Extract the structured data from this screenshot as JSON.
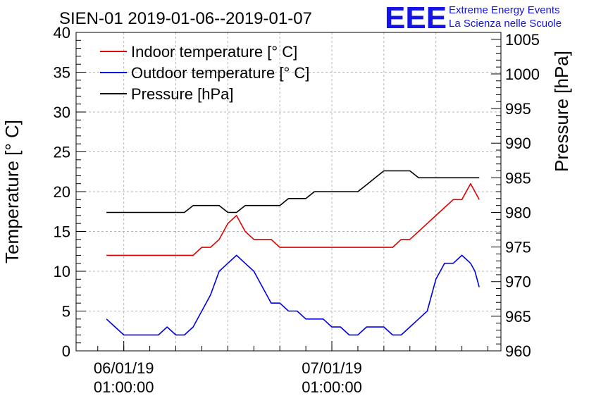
{
  "chart_data": {
    "type": "line",
    "title": "SIEN-01 2019-01-06--2019-01-07",
    "logo": {
      "text": "EEE",
      "line1": "Extreme Energy Events",
      "line2": "La Scienza nelle Scuole",
      "color": "#1414e6"
    },
    "ylabel_left": "Temperature [° C]",
    "ylabel_right": "Pressure [hPa]",
    "ylim_left": [
      0,
      40
    ],
    "ylim_right": [
      960,
      1006
    ],
    "left_ticks": [
      "0",
      "5",
      "10",
      "15",
      "20",
      "25",
      "30",
      "35",
      "40"
    ],
    "right_ticks": [
      "960",
      "965",
      "970",
      "975",
      "980",
      "985",
      "990",
      "995",
      "1000",
      "1005"
    ],
    "x_hours_range": [
      -5.5,
      43.5
    ],
    "x_ticks": [
      {
        "hour": 0,
        "date": "06/01/19",
        "time": "01:00:00"
      },
      {
        "hour": 24,
        "date": "07/01/19",
        "time": "01:00:00"
      }
    ],
    "legend": [
      "Indoor temperature [° C]",
      "Outdoor temperature [° C]",
      "Pressure [hPa]"
    ],
    "x": [
      -2,
      -1,
      0,
      1,
      2,
      3,
      4,
      5,
      6,
      7,
      8,
      9,
      10,
      11,
      12,
      13,
      14,
      15,
      16,
      17,
      18,
      19,
      20,
      21,
      22,
      23,
      24,
      25,
      26,
      27,
      28,
      29,
      30,
      31,
      32,
      33,
      34,
      35,
      36,
      37,
      38,
      39,
      40,
      40.5,
      41
    ],
    "series": [
      {
        "name": "Indoor temperature [° C]",
        "axis": "left",
        "color": "#e00000",
        "values": [
          12,
          12,
          12,
          12,
          12,
          12,
          12,
          12,
          12,
          12,
          12,
          13,
          13,
          14,
          16,
          17,
          15,
          14,
          14,
          14,
          13,
          13,
          13,
          13,
          13,
          13,
          13,
          13,
          13,
          13,
          13,
          13,
          13,
          13,
          14,
          14,
          15,
          16,
          17,
          18,
          19,
          19,
          21,
          20,
          19
        ]
      },
      {
        "name": "Outdoor temperature [° C]",
        "axis": "left",
        "color": "#0000e0",
        "values": [
          4,
          3,
          2,
          2,
          2,
          2,
          2,
          3,
          2,
          2,
          3,
          5,
          7,
          10,
          11,
          12,
          11,
          10,
          8,
          6,
          6,
          5,
          5,
          4,
          4,
          4,
          3,
          3,
          2,
          2,
          3,
          3,
          3,
          2,
          2,
          3,
          4,
          5,
          9,
          11,
          11,
          12,
          11,
          10,
          8
        ]
      },
      {
        "name": "Pressure [hPa]",
        "axis": "right",
        "color": "#000000",
        "values": [
          980,
          980,
          980,
          980,
          980,
          980,
          980,
          980,
          980,
          980,
          981,
          981,
          981,
          981,
          980,
          980,
          981,
          981,
          981,
          981,
          981,
          982,
          982,
          982,
          983,
          983,
          983,
          983,
          983,
          983,
          984,
          985,
          986,
          986,
          986,
          986,
          985,
          985,
          985,
          985,
          985,
          985,
          985,
          985,
          985
        ]
      }
    ]
  }
}
